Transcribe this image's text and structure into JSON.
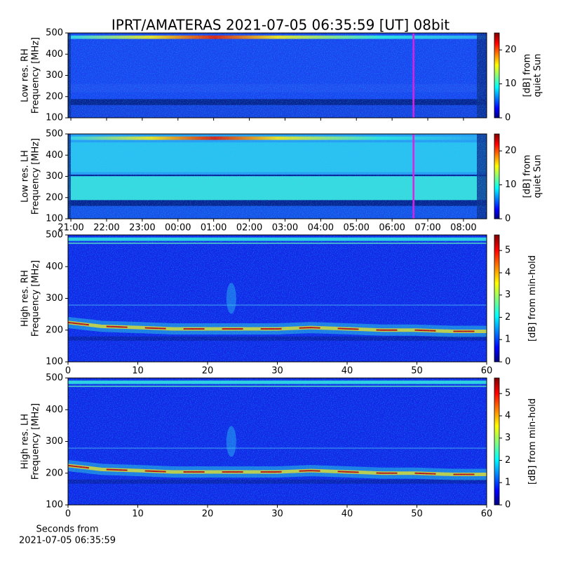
{
  "title": "IPRT/AMATERAS 2021-07-05 06:35:59 [UT]   08bit",
  "chart_data": [
    {
      "type": "heatmap",
      "ylabel": [
        "Low res. RH",
        "Frequency [MHz]"
      ],
      "ylim": [
        100,
        500
      ],
      "yticks": [
        100,
        200,
        300,
        400,
        500
      ],
      "xlim": [
        -3.08,
        8.65
      ],
      "xticks": [
        {
          "value": -3,
          "label": "21:00"
        },
        {
          "value": -2,
          "label": "22:00"
        },
        {
          "value": -1,
          "label": "23:00"
        },
        {
          "value": 0,
          "label": "00:00"
        },
        {
          "value": 1,
          "label": "01:00"
        },
        {
          "value": 2,
          "label": "02:00"
        },
        {
          "value": 3,
          "label": "03:00"
        },
        {
          "value": 4,
          "label": "04:00"
        },
        {
          "value": 5,
          "label": "05:00"
        },
        {
          "value": 6,
          "label": "06:00"
        },
        {
          "value": 7,
          "label": "07:00"
        },
        {
          "value": 8,
          "label": "08:00"
        }
      ],
      "xtick_labels": false,
      "marker_x": 6.6,
      "marker_color": "#e020e0",
      "colorbar": {
        "label": [
          "[dB] from",
          "quiet Sun"
        ],
        "lim": [
          0,
          25
        ],
        "ticks": [
          0,
          10,
          20
        ],
        "colormap": "jet"
      }
    },
    {
      "type": "heatmap",
      "ylabel": [
        "Low res. LH",
        "Frequency [MHz]"
      ],
      "ylim": [
        100,
        500
      ],
      "yticks": [
        100,
        200,
        300,
        400,
        500
      ],
      "xlim": [
        -3.08,
        8.65
      ],
      "xticks": [
        {
          "value": -3,
          "label": "21:00"
        },
        {
          "value": -2,
          "label": "22:00"
        },
        {
          "value": -1,
          "label": "23:00"
        },
        {
          "value": 0,
          "label": "00:00"
        },
        {
          "value": 1,
          "label": "01:00"
        },
        {
          "value": 2,
          "label": "02:00"
        },
        {
          "value": 3,
          "label": "03:00"
        },
        {
          "value": 4,
          "label": "04:00"
        },
        {
          "value": 5,
          "label": "05:00"
        },
        {
          "value": 6,
          "label": "06:00"
        },
        {
          "value": 7,
          "label": "07:00"
        },
        {
          "value": 8,
          "label": "08:00"
        }
      ],
      "marker_x": 6.6,
      "marker_color": "#e020e0",
      "colorbar": {
        "label": [
          "[dB] from",
          "quiet Sun"
        ],
        "lim": [
          0,
          25
        ],
        "ticks": [
          0,
          10,
          20
        ],
        "colormap": "jet"
      }
    },
    {
      "type": "heatmap",
      "ylabel": [
        "High res. RH",
        "Frequency [MHz]"
      ],
      "ylim": [
        100,
        500
      ],
      "yticks": [
        100,
        200,
        300,
        400,
        500
      ],
      "xlim": [
        0,
        60
      ],
      "xticks": [
        0,
        10,
        20,
        30,
        40,
        50,
        60
      ],
      "colorbar": {
        "label": [
          "[dB] from min-hold"
        ],
        "lim": [
          0,
          5.7
        ],
        "ticks": [
          0,
          1,
          2,
          3,
          4,
          5
        ],
        "colormap": "jet"
      }
    },
    {
      "type": "heatmap",
      "ylabel": [
        "High res. LH",
        "Frequency [MHz]"
      ],
      "ylim": [
        100,
        500
      ],
      "yticks": [
        100,
        200,
        300,
        400,
        500
      ],
      "xlim": [
        0,
        60
      ],
      "xticks": [
        0,
        10,
        20,
        30,
        40,
        50,
        60
      ],
      "xlabel": [
        "Seconds from",
        "2021-07-05 06:35:59"
      ],
      "colorbar": {
        "label": [
          "[dB] from min-hold"
        ],
        "lim": [
          0,
          5.7
        ],
        "ticks": [
          0,
          1,
          2,
          3,
          4,
          5
        ],
        "colormap": "jet"
      }
    }
  ]
}
